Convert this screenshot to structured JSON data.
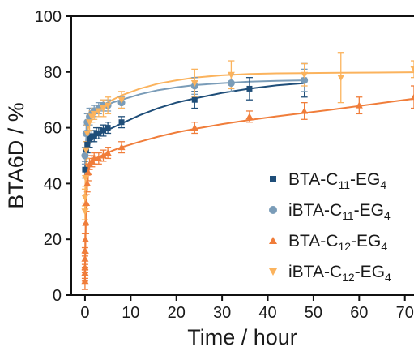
{
  "chart_data": {
    "type": "scatter",
    "xlabel": "Time / hour",
    "ylabel": "BTA6D / %",
    "xlim": [
      -3,
      72
    ],
    "ylim": [
      0,
      100
    ],
    "x_ticks": [
      0,
      10,
      20,
      30,
      40,
      50,
      60,
      70
    ],
    "y_ticks": [
      0,
      20,
      40,
      60,
      80,
      100
    ],
    "legend_position": "right",
    "legend": [
      {
        "prefix": "BTA-C",
        "sub1": "11",
        "mid": "-EG",
        "sub2": "4"
      },
      {
        "prefix": "iBTA-C",
        "sub1": "11",
        "mid": "-EG",
        "sub2": "4"
      },
      {
        "prefix": "BTA-C",
        "sub1": "12",
        "mid": "-EG",
        "sub2": "4"
      },
      {
        "prefix": "iBTA-C",
        "sub1": "12",
        "mid": "-EG",
        "sub2": "4"
      }
    ],
    "series": [
      {
        "marker": "square",
        "color": "#1f4e79",
        "points": [
          [
            0,
            45,
            3
          ],
          [
            0.25,
            52,
            3
          ],
          [
            0.5,
            54,
            3
          ],
          [
            1,
            56,
            3
          ],
          [
            1.5,
            57,
            2
          ],
          [
            2,
            57,
            2
          ],
          [
            2.5,
            58,
            2
          ],
          [
            3,
            58,
            2
          ],
          [
            4,
            59,
            2
          ],
          [
            5,
            60,
            2
          ],
          [
            8,
            62,
            2
          ],
          [
            24,
            70,
            3
          ],
          [
            36,
            74,
            4
          ],
          [
            48,
            77,
            6
          ]
        ],
        "fit": [
          [
            0,
            44
          ],
          [
            0.3,
            50
          ],
          [
            0.7,
            53
          ],
          [
            1.2,
            55
          ],
          [
            2,
            56.5
          ],
          [
            3,
            57.5
          ],
          [
            4,
            58.5
          ],
          [
            6,
            60
          ],
          [
            8,
            61.5
          ],
          [
            12,
            64.5
          ],
          [
            16,
            67
          ],
          [
            20,
            69
          ],
          [
            24,
            70.5
          ],
          [
            30,
            72.5
          ],
          [
            36,
            74
          ],
          [
            42,
            75.2
          ],
          [
            48,
            76
          ]
        ]
      },
      {
        "marker": "circle",
        "color": "#7a9cb8",
        "points": [
          [
            0,
            50,
            3
          ],
          [
            0.25,
            58,
            3
          ],
          [
            0.5,
            62,
            3
          ],
          [
            1,
            64,
            3
          ],
          [
            1.5,
            65,
            2
          ],
          [
            2,
            66,
            2
          ],
          [
            3,
            67,
            2
          ],
          [
            4,
            68,
            2
          ],
          [
            5,
            68,
            2
          ],
          [
            8,
            69,
            2
          ],
          [
            24,
            75,
            3
          ],
          [
            32,
            76,
            3
          ],
          [
            48,
            77,
            4
          ]
        ],
        "fit": [
          [
            0,
            50
          ],
          [
            0.3,
            57
          ],
          [
            0.7,
            61
          ],
          [
            1.2,
            63.5
          ],
          [
            2,
            65
          ],
          [
            3,
            66.5
          ],
          [
            4,
            67.5
          ],
          [
            6,
            69
          ],
          [
            8,
            70
          ],
          [
            12,
            72
          ],
          [
            16,
            73.5
          ],
          [
            20,
            74.5
          ],
          [
            24,
            75.3
          ],
          [
            30,
            76
          ],
          [
            36,
            76.5
          ],
          [
            42,
            76.8
          ],
          [
            48,
            77
          ]
        ]
      },
      {
        "marker": "triangle-up",
        "color": "#f07d3a",
        "points": [
          [
            0,
            5,
            3
          ],
          [
            0,
            8,
            3
          ],
          [
            0,
            10,
            4
          ],
          [
            0,
            13,
            4
          ],
          [
            0,
            16,
            6
          ],
          [
            0.1,
            20,
            5
          ],
          [
            0.2,
            26,
            4
          ],
          [
            0.3,
            33,
            3
          ],
          [
            0.5,
            40,
            3
          ],
          [
            0.7,
            44,
            3
          ],
          [
            1,
            47,
            2
          ],
          [
            1.5,
            48,
            2
          ],
          [
            2,
            49,
            2
          ],
          [
            3,
            49,
            2
          ],
          [
            4,
            50,
            2
          ],
          [
            5,
            51,
            2
          ],
          [
            8,
            53,
            2
          ],
          [
            24,
            60,
            2
          ],
          [
            36,
            64,
            2
          ],
          [
            48,
            66,
            3
          ],
          [
            60,
            68,
            3
          ],
          [
            72,
            71,
            4
          ]
        ],
        "fit": [
          [
            0,
            6
          ],
          [
            0.1,
            20
          ],
          [
            0.2,
            30
          ],
          [
            0.4,
            38
          ],
          [
            0.7,
            43.5
          ],
          [
            1,
            46.5
          ],
          [
            1.5,
            48
          ],
          [
            2,
            48.8
          ],
          [
            3,
            49.5
          ],
          [
            4,
            50.3
          ],
          [
            6,
            51.8
          ],
          [
            8,
            53
          ],
          [
            12,
            55
          ],
          [
            16,
            56.8
          ],
          [
            20,
            58.3
          ],
          [
            24,
            59.6
          ],
          [
            30,
            61.3
          ],
          [
            36,
            62.8
          ],
          [
            42,
            64.1
          ],
          [
            48,
            65.3
          ],
          [
            54,
            66.5
          ],
          [
            60,
            67.8
          ],
          [
            66,
            69.1
          ],
          [
            72,
            70.4
          ]
        ]
      },
      {
        "marker": "triangle-down",
        "color": "#fbb35d",
        "points": [
          [
            0,
            30,
            3
          ],
          [
            0,
            35,
            3
          ],
          [
            0.1,
            42,
            3
          ],
          [
            0.25,
            52,
            3
          ],
          [
            0.5,
            58,
            3
          ],
          [
            1,
            62,
            3
          ],
          [
            1.5,
            64,
            2
          ],
          [
            2,
            65,
            2
          ],
          [
            3,
            66,
            2
          ],
          [
            4,
            67,
            3
          ],
          [
            5,
            68,
            3
          ],
          [
            8,
            70,
            3
          ],
          [
            24,
            76,
            5
          ],
          [
            32,
            79,
            5
          ],
          [
            48,
            79,
            4
          ],
          [
            56,
            78,
            9
          ],
          [
            72,
            81,
            3
          ]
        ],
        "fit": [
          [
            0,
            30
          ],
          [
            0.1,
            41
          ],
          [
            0.3,
            52
          ],
          [
            0.6,
            59
          ],
          [
            1,
            62.3
          ],
          [
            1.5,
            64
          ],
          [
            2,
            65.2
          ],
          [
            3,
            66.8
          ],
          [
            4,
            68
          ],
          [
            6,
            70
          ],
          [
            8,
            71.6
          ],
          [
            12,
            74
          ],
          [
            16,
            75.8
          ],
          [
            20,
            77
          ],
          [
            24,
            78
          ],
          [
            30,
            78.8
          ],
          [
            36,
            79.3
          ],
          [
            42,
            79.5
          ],
          [
            48,
            79.6
          ],
          [
            56,
            79.7
          ],
          [
            64,
            79.8
          ],
          [
            72,
            79.9
          ]
        ]
      }
    ]
  }
}
